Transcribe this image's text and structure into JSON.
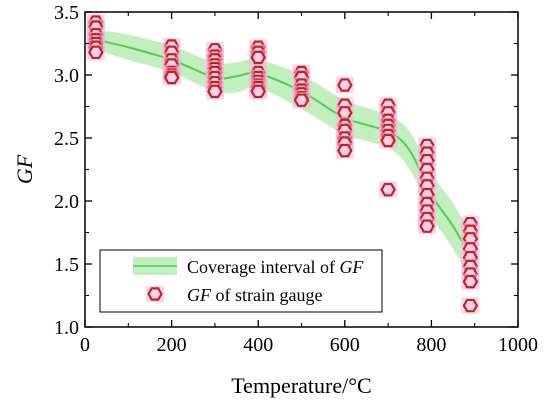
{
  "chart_data": {
    "type": "scatter",
    "xlabel": "Temperature/°C",
    "ylabel": "GF",
    "xlim": [
      0,
      1000
    ],
    "ylim": [
      1.0,
      3.5
    ],
    "x_ticks": [
      0,
      200,
      400,
      600,
      800,
      1000
    ],
    "y_ticks": [
      1.0,
      1.5,
      2.0,
      2.5,
      3.0,
      3.5
    ],
    "x_tick_labels": [
      "0",
      "200",
      "400",
      "600",
      "800",
      "1000"
    ],
    "y_tick_labels": [
      "1.0",
      "1.5",
      "2.0",
      "2.5",
      "3.0",
      "3.5"
    ],
    "grid": false,
    "legend": {
      "placement": "bottom-left",
      "band_prefix": "Coverage interval of ",
      "band_italic": "GF",
      "points_italic": "GF",
      "points_suffix": " of strain gauge"
    },
    "colors": {
      "band_fill": "#aeeaa8",
      "band_line": "#55cc55",
      "marker_edge": "#c0251c",
      "marker_fill": "#ffd0ee",
      "marker_halo": "#f4b6e6"
    },
    "band": {
      "x": [
        25,
        100,
        200,
        300,
        350,
        400,
        500,
        600,
        700,
        750,
        800,
        850,
        900
      ],
      "center": [
        3.28,
        3.22,
        3.12,
        2.98,
        2.99,
        3.01,
        2.87,
        2.66,
        2.55,
        2.4,
        2.05,
        1.8,
        1.5
      ],
      "lower": [
        3.2,
        3.12,
        3.02,
        2.87,
        2.86,
        2.9,
        2.73,
        2.53,
        2.42,
        2.25,
        1.88,
        1.62,
        1.32
      ],
      "upper": [
        3.36,
        3.32,
        3.23,
        3.1,
        3.1,
        3.12,
        3.0,
        2.8,
        2.68,
        2.55,
        2.22,
        1.98,
        1.68
      ]
    },
    "series": [
      {
        "points": [
          {
            "x": 25,
            "y": [
              3.42,
              3.38,
              3.32,
              3.28,
              3.25,
              3.22,
              3.18
            ]
          },
          {
            "x": 200,
            "y": [
              3.23,
              3.18,
              3.12,
              3.08,
              3.02,
              3.0,
              2.98
            ]
          },
          {
            "x": 300,
            "y": [
              3.2,
              3.15,
              3.12,
              3.08,
              3.05,
              3.02,
              2.98,
              2.94,
              2.9,
              2.87
            ]
          },
          {
            "x": 400,
            "y": [
              3.22,
              3.18,
              3.14,
              3.02,
              2.98,
              2.95,
              2.92,
              2.9,
              2.87
            ]
          },
          {
            "x": 500,
            "y": [
              3.02,
              2.98,
              2.92,
              2.88,
              2.85,
              2.82,
              2.8
            ]
          },
          {
            "x": 600,
            "y": [
              2.92,
              2.76,
              2.7,
              2.6,
              2.56,
              2.5,
              2.46,
              2.4
            ]
          },
          {
            "x": 700,
            "y": [
              2.76,
              2.7,
              2.64,
              2.6,
              2.56,
              2.52,
              2.48,
              2.09
            ]
          },
          {
            "x": 790,
            "y": [
              2.44,
              2.38,
              2.32,
              2.25,
              2.18,
              2.12,
              2.05,
              1.98,
              1.92,
              1.86,
              1.8
            ]
          },
          {
            "x": 890,
            "y": [
              1.82,
              1.76,
              1.7,
              1.62,
              1.55,
              1.48,
              1.42,
              1.36,
              1.17
            ]
          }
        ]
      }
    ]
  }
}
